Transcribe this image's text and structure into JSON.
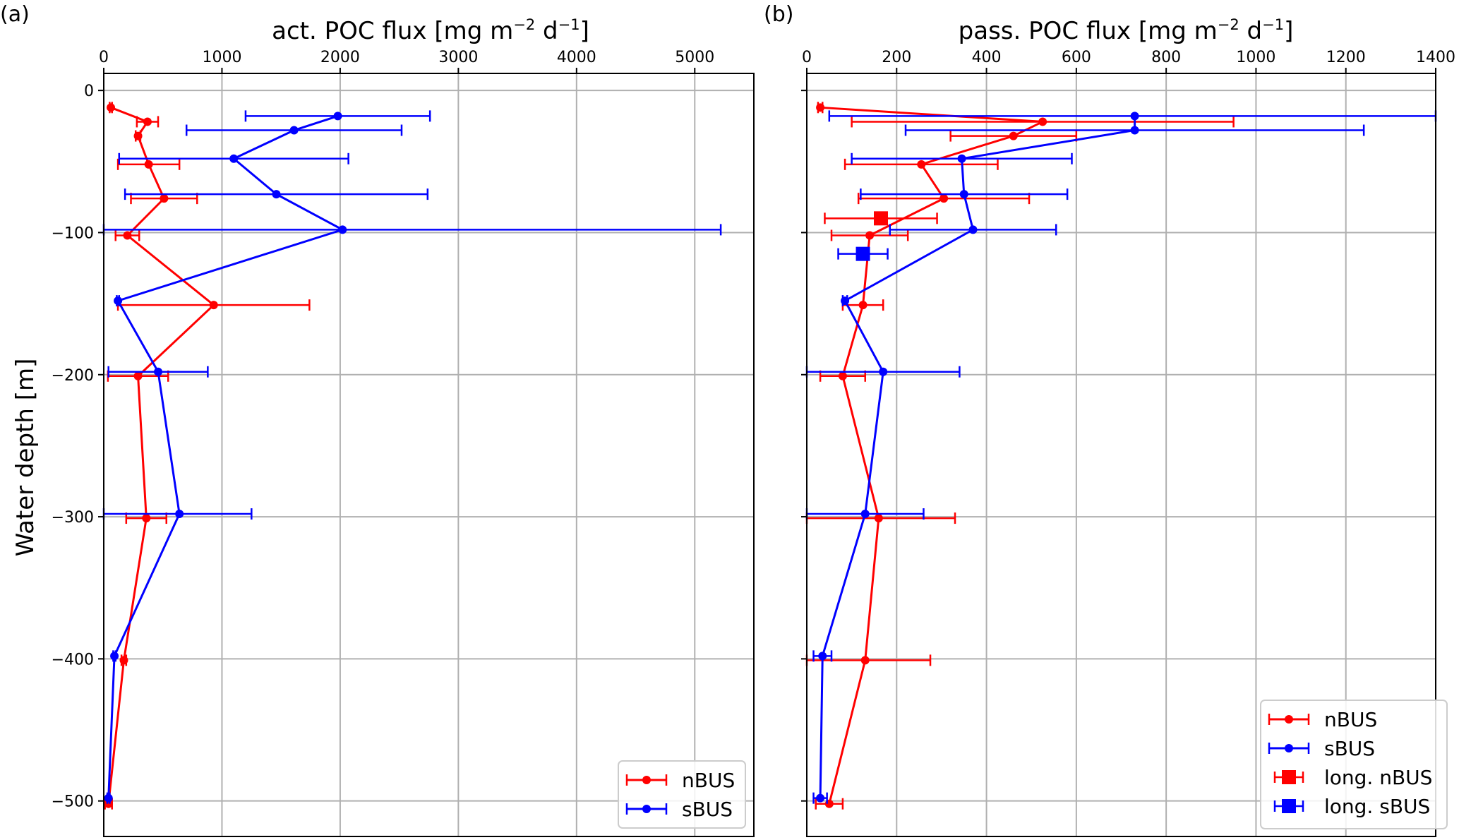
{
  "chart_data": [
    {
      "type": "line",
      "panel_label": "(a)",
      "xlabel_main": "act. POC flux  [mg m",
      "xlabel_sup1": "−2",
      "xlabel_mid": " d",
      "xlabel_sup2": "−1",
      "xlabel_end": "]",
      "ylabel": "Water depth [m]",
      "xlim": [
        0,
        5500
      ],
      "ylim": [
        -525,
        12
      ],
      "x_ticks": [
        0,
        1000,
        2000,
        3000,
        4000,
        5000
      ],
      "x_tick_labels": [
        "0",
        "1000",
        "2000",
        "3000",
        "4000",
        "5000"
      ],
      "y_ticks": [
        0,
        -100,
        -200,
        -300,
        -400,
        -500
      ],
      "y_tick_labels": [
        "0",
        "−100",
        "−200",
        "−300",
        "−400",
        "−500"
      ],
      "grid": true,
      "x_axis_position": "top",
      "legend_position": "lower-right",
      "series": [
        {
          "name": "nBUS",
          "color": "#ff0000",
          "marker": "circle",
          "points": [
            {
              "x": 60,
              "y": -12,
              "xerr": [
                10,
                10
              ]
            },
            {
              "x": 370,
              "y": -22,
              "xerr": [
                90,
                90
              ]
            },
            {
              "x": 290,
              "y": -32,
              "xerr": [
                20,
                20
              ]
            },
            {
              "x": 380,
              "y": -52,
              "xerr": [
                260,
                260
              ]
            },
            {
              "x": 510,
              "y": -76,
              "xerr": [
                280,
                280
              ]
            },
            {
              "x": 200,
              "y": -102,
              "xerr": [
                100,
                100
              ]
            },
            {
              "x": 930,
              "y": -151,
              "xerr": [
                810,
                810
              ]
            },
            {
              "x": 290,
              "y": -201,
              "xerr": [
                255,
                255
              ]
            },
            {
              "x": 360,
              "y": -301,
              "xerr": [
                170,
                170
              ]
            },
            {
              "x": 170,
              "y": -401,
              "xerr": [
                20,
                20
              ]
            },
            {
              "x": 40,
              "y": -502,
              "xerr": [
                30,
                30
              ]
            }
          ]
        },
        {
          "name": "sBUS",
          "color": "#0000ff",
          "marker": "circle",
          "points": [
            {
              "x": 1980,
              "y": -18,
              "xerr": [
                780,
                780
              ]
            },
            {
              "x": 1610,
              "y": -28,
              "xerr": [
                910,
                910
              ]
            },
            {
              "x": 1100,
              "y": -48,
              "xerr": [
                970,
                970
              ]
            },
            {
              "x": 1460,
              "y": -73,
              "xerr": [
                1280,
                1280
              ]
            },
            {
              "x": 2020,
              "y": -98,
              "xerr": [
                2020,
                3200
              ]
            },
            {
              "x": 120,
              "y": -148,
              "xerr": [
                10,
                10
              ]
            },
            {
              "x": 460,
              "y": -198,
              "xerr": [
                420,
                420
              ]
            },
            {
              "x": 640,
              "y": -298,
              "xerr": [
                640,
                610
              ]
            },
            {
              "x": 90,
              "y": -398,
              "xerr": [
                10,
                10
              ]
            },
            {
              "x": 40,
              "y": -498,
              "xerr": [
                10,
                10
              ]
            }
          ]
        }
      ],
      "legend": [
        {
          "label": "nBUS",
          "color": "#ff0000",
          "marker": "circle"
        },
        {
          "label": "sBUS",
          "color": "#0000ff",
          "marker": "circle"
        }
      ]
    },
    {
      "type": "line",
      "panel_label": "(b)",
      "xlabel_main": "pass. POC flux  [mg m",
      "xlabel_sup1": "−2",
      "xlabel_mid": " d",
      "xlabel_sup2": "−1",
      "xlabel_end": "]",
      "ylabel": "",
      "xlim": [
        0,
        1400
      ],
      "ylim": [
        -525,
        12
      ],
      "x_ticks": [
        0,
        200,
        400,
        600,
        800,
        1000,
        1200,
        1400
      ],
      "x_tick_labels": [
        "0",
        "200",
        "400",
        "600",
        "800",
        "1000",
        "1200",
        "1400"
      ],
      "y_ticks": [
        0,
        -100,
        -200,
        -300,
        -400,
        -500
      ],
      "y_tick_labels": [],
      "grid": true,
      "x_axis_position": "top",
      "legend_position": "lower-right",
      "series": [
        {
          "name": "nBUS",
          "color": "#ff0000",
          "marker": "circle",
          "points": [
            {
              "x": 30,
              "y": -12,
              "xerr": [
                5,
                5
              ]
            },
            {
              "x": 525,
              "y": -22,
              "xerr": [
                425,
                425
              ]
            },
            {
              "x": 460,
              "y": -32,
              "xerr": [
                140,
                140
              ]
            },
            {
              "x": 255,
              "y": -52,
              "xerr": [
                170,
                170
              ]
            },
            {
              "x": 305,
              "y": -76,
              "xerr": [
                190,
                190
              ]
            },
            {
              "x": 140,
              "y": -102,
              "xerr": [
                85,
                85
              ]
            },
            {
              "x": 125,
              "y": -151,
              "xerr": [
                45,
                45
              ]
            },
            {
              "x": 80,
              "y": -201,
              "xerr": [
                50,
                50
              ]
            },
            {
              "x": 160,
              "y": -301,
              "xerr": [
                170,
                170
              ]
            },
            {
              "x": 130,
              "y": -401,
              "xerr": [
                145,
                145
              ]
            },
            {
              "x": 50,
              "y": -502,
              "xerr": [
                30,
                30
              ]
            }
          ]
        },
        {
          "name": "sBUS",
          "color": "#0000ff",
          "marker": "circle",
          "points": [
            {
              "x": 730,
              "y": -18,
              "xerr": [
                680,
                680
              ]
            },
            {
              "x": 730,
              "y": -28,
              "xerr": [
                510,
                510
              ]
            },
            {
              "x": 345,
              "y": -48,
              "xerr": [
                245,
                245
              ]
            },
            {
              "x": 350,
              "y": -73,
              "xerr": [
                230,
                230
              ]
            },
            {
              "x": 370,
              "y": -98,
              "xerr": [
                185,
                185
              ]
            },
            {
              "x": 85,
              "y": -148,
              "xerr": [
                5,
                5
              ]
            },
            {
              "x": 170,
              "y": -198,
              "xerr": [
                170,
                170
              ]
            },
            {
              "x": 130,
              "y": -298,
              "xerr": [
                130,
                130
              ]
            },
            {
              "x": 35,
              "y": -398,
              "xerr": [
                20,
                20
              ]
            },
            {
              "x": 30,
              "y": -498,
              "xerr": [
                15,
                15
              ]
            }
          ]
        },
        {
          "name": "long. nBUS",
          "color": "#ff0000",
          "marker": "square",
          "points": [
            {
              "x": 165,
              "y": -90,
              "xerr": [
                125,
                125
              ]
            }
          ]
        },
        {
          "name": "long. sBUS",
          "color": "#0000ff",
          "marker": "square",
          "points": [
            {
              "x": 125,
              "y": -115,
              "xerr": [
                55,
                55
              ]
            }
          ]
        }
      ],
      "legend": [
        {
          "label": "nBUS",
          "color": "#ff0000",
          "marker": "circle"
        },
        {
          "label": "sBUS",
          "color": "#0000ff",
          "marker": "circle"
        },
        {
          "label": "long. nBUS",
          "color": "#ff0000",
          "marker": "square"
        },
        {
          "label": "long. sBUS",
          "color": "#0000ff",
          "marker": "square"
        }
      ]
    }
  ]
}
